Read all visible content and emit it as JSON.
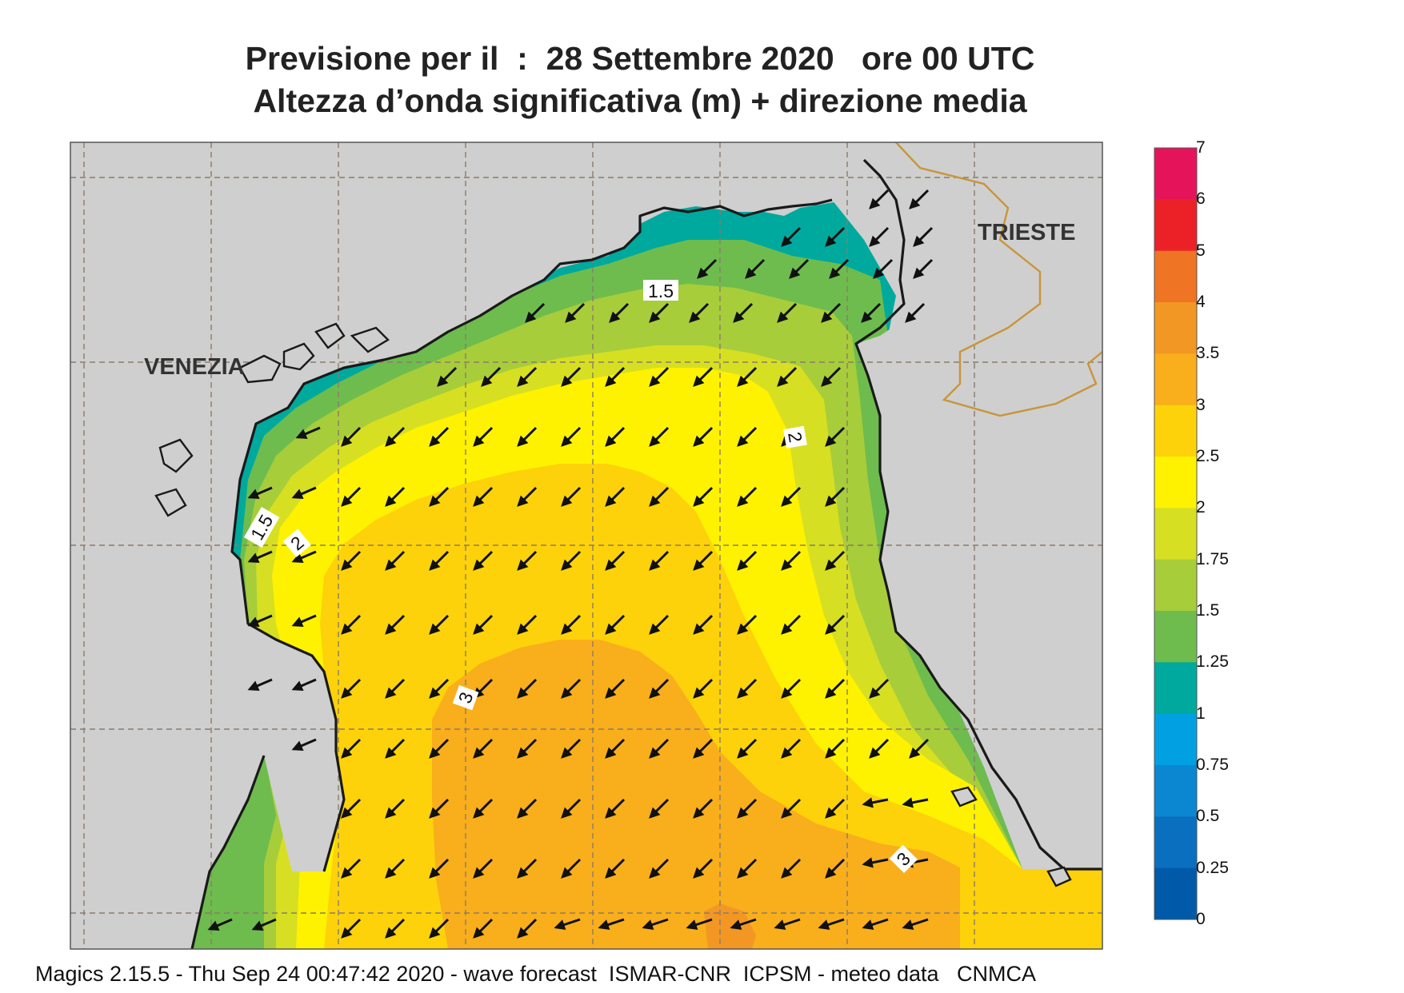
{
  "title": {
    "line1": "Previsione per il  :  28 Settembre 2020   ore 00 UTC",
    "line2": "Altezza d’onda significativa (m) + direzione media"
  },
  "map": {
    "places": [
      "VENEZIA",
      "TRIESTE"
    ],
    "contour_labels": [
      "1.5",
      "1.5",
      "2",
      "2",
      "3",
      "3"
    ],
    "colors": {
      "land": "#cfcfcf",
      "coastline": "#1a1a1a",
      "border": "#c8953a",
      "grid": "#8c7b6b",
      "arrow": "#111111"
    }
  },
  "legend": {
    "labels": [
      "7",
      "6",
      "5",
      "4",
      "3.5",
      "3",
      "2.5",
      "2",
      "1.75",
      "1.5",
      "1.25",
      "1",
      "0.75",
      "0.5",
      "0.25",
      "0"
    ],
    "colors": [
      "#e5145a",
      "#ec2128",
      "#ef7424",
      "#f39724",
      "#f9ae1c",
      "#fdd20a",
      "#fef200",
      "#d7df23",
      "#a7cd3a",
      "#6ebc4e",
      "#00a99d",
      "#00a0e3",
      "#0b87d1",
      "#0a6fbf",
      "#005aa9"
    ]
  },
  "footer": "Magics 2.15.5 - Thu Sep 24 00:47:42 2020 - wave forecast  ISMAR-CNR  ICPSM - meteo data   CNMCA"
}
